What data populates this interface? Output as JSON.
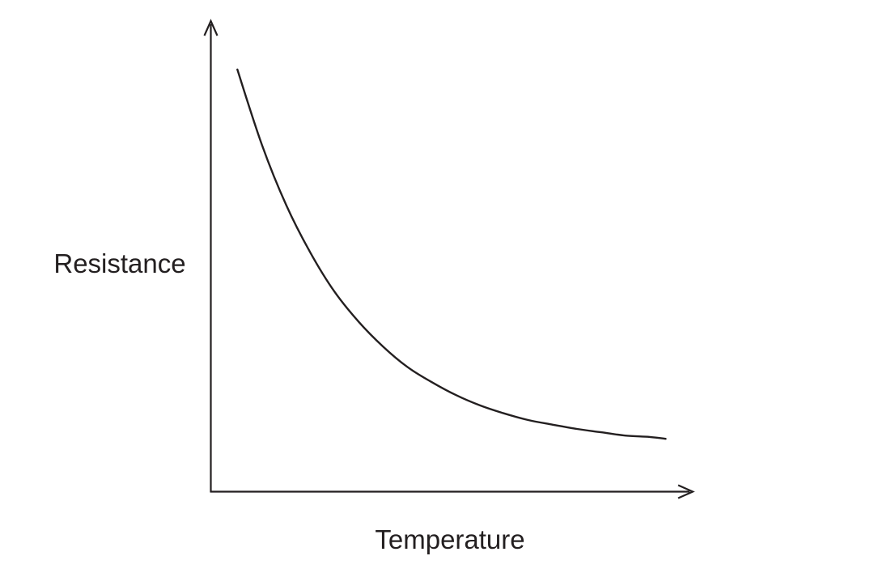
{
  "figure": {
    "background": "#ffffff",
    "ink_color": "#231f20"
  },
  "chart_data": {
    "type": "line",
    "title": "",
    "xlabel": "Temperature",
    "ylabel": "Resistance",
    "grid": false,
    "legend": false,
    "tick_labels": "none (qualitative sketch, arrow-terminated axes, no tick marks or numeric scale)",
    "relationship": "Resistance decreases exponentially with increasing temperature, approaching a low asymptote (NTC thermistor characteristic)",
    "xlim_norm": [
      0,
      1
    ],
    "ylim_norm": [
      0,
      1
    ],
    "series": [
      {
        "name": "Resistance vs Temperature",
        "points_norm": [
          [
            0.055,
            0.897
          ],
          [
            0.106,
            0.737
          ],
          [
            0.156,
            0.61
          ],
          [
            0.206,
            0.509
          ],
          [
            0.256,
            0.426
          ],
          [
            0.307,
            0.361
          ],
          [
            0.357,
            0.309
          ],
          [
            0.407,
            0.266
          ],
          [
            0.457,
            0.234
          ],
          [
            0.508,
            0.206
          ],
          [
            0.558,
            0.184
          ],
          [
            0.608,
            0.167
          ],
          [
            0.658,
            0.153
          ],
          [
            0.709,
            0.143
          ],
          [
            0.759,
            0.134
          ],
          [
            0.809,
            0.127
          ],
          [
            0.859,
            0.12
          ],
          [
            0.91,
            0.117
          ],
          [
            0.943,
            0.113
          ]
        ]
      }
    ]
  }
}
